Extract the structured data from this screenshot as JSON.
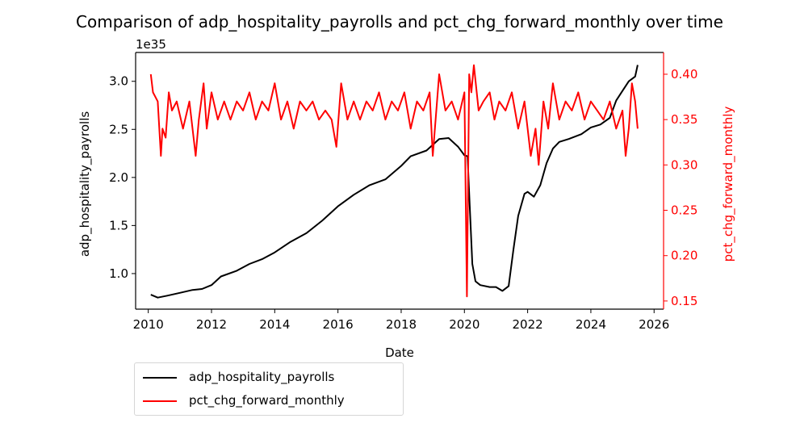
{
  "chart_data": {
    "type": "line",
    "title": "Comparison of adp_hospitality_payrolls and pct_chg_forward_monthly over time",
    "xlabel": "Date",
    "xlim": [
      2009.6,
      2026.3
    ],
    "xticks": [
      "2010",
      "2012",
      "2014",
      "2016",
      "2018",
      "2020",
      "2022",
      "2024",
      "2026"
    ],
    "xtick_values": [
      2010,
      2012,
      2014,
      2016,
      2018,
      2020,
      2022,
      2024,
      2026
    ],
    "left_axis": {
      "label": "adp_hospitality_payrolls",
      "offset_text": "1e35",
      "ylim": [
        0.63,
        3.3
      ],
      "ticks": [
        "1.0",
        "1.5",
        "2.0",
        "2.5",
        "3.0"
      ],
      "tick_values": [
        1.0,
        1.5,
        2.0,
        2.5,
        3.0
      ],
      "color": "#000000"
    },
    "right_axis": {
      "label": "pct_chg_forward_monthly",
      "ylim": [
        0.141,
        0.424
      ],
      "ticks": [
        "0.15",
        "0.20",
        "0.25",
        "0.30",
        "0.35",
        "0.40"
      ],
      "tick_values": [
        0.15,
        0.2,
        0.25,
        0.3,
        0.35,
        0.4
      ],
      "color": "#ff0000"
    },
    "legend_placement": "below-left",
    "series": [
      {
        "name": "adp_hospitality_payrolls",
        "axis": "left",
        "color": "#000000",
        "x": [
          2010.08,
          2010.3,
          2010.6,
          2011.0,
          2011.4,
          2011.7,
          2012.0,
          2012.3,
          2012.8,
          2013.2,
          2013.6,
          2014.0,
          2014.5,
          2015.0,
          2015.5,
          2016.0,
          2016.5,
          2017.0,
          2017.5,
          2018.0,
          2018.3,
          2018.8,
          2019.2,
          2019.5,
          2019.8,
          2020.0,
          2020.1,
          2020.17,
          2020.25,
          2020.35,
          2020.5,
          2020.8,
          2021.0,
          2021.2,
          2021.4,
          2021.55,
          2021.7,
          2021.9,
          2022.0,
          2022.2,
          2022.4,
          2022.6,
          2022.8,
          2023.0,
          2023.3,
          2023.7,
          2024.0,
          2024.3,
          2024.6,
          2024.8,
          2025.0,
          2025.2,
          2025.4,
          2025.48
        ],
        "y": [
          0.78,
          0.75,
          0.77,
          0.8,
          0.83,
          0.84,
          0.88,
          0.97,
          1.03,
          1.1,
          1.15,
          1.22,
          1.33,
          1.42,
          1.55,
          1.7,
          1.82,
          1.92,
          1.98,
          2.12,
          2.22,
          2.28,
          2.4,
          2.41,
          2.32,
          2.23,
          2.22,
          1.7,
          1.1,
          0.92,
          0.88,
          0.86,
          0.86,
          0.82,
          0.87,
          1.25,
          1.6,
          1.83,
          1.85,
          1.8,
          1.92,
          2.15,
          2.3,
          2.37,
          2.4,
          2.45,
          2.52,
          2.55,
          2.62,
          2.8,
          2.9,
          3.0,
          3.05,
          3.17
        ]
      },
      {
        "name": "pct_chg_forward_monthly",
        "axis": "right",
        "color": "#ff0000",
        "x": [
          2010.08,
          2010.15,
          2010.3,
          2010.4,
          2010.45,
          2010.55,
          2010.65,
          2010.75,
          2010.9,
          2011.1,
          2011.3,
          2011.5,
          2011.6,
          2011.75,
          2011.85,
          2012.0,
          2012.2,
          2012.4,
          2012.6,
          2012.8,
          2013.0,
          2013.2,
          2013.4,
          2013.6,
          2013.8,
          2014.0,
          2014.2,
          2014.4,
          2014.6,
          2014.8,
          2015.0,
          2015.2,
          2015.4,
          2015.6,
          2015.8,
          2015.95,
          2016.1,
          2016.3,
          2016.5,
          2016.7,
          2016.9,
          2017.1,
          2017.3,
          2017.5,
          2017.7,
          2017.9,
          2018.1,
          2018.3,
          2018.5,
          2018.7,
          2018.9,
          2019.0,
          2019.2,
          2019.4,
          2019.6,
          2019.8,
          2020.0,
          2020.08,
          2020.15,
          2020.22,
          2020.3,
          2020.45,
          2020.6,
          2020.8,
          2020.95,
          2021.1,
          2021.3,
          2021.5,
          2021.7,
          2021.9,
          2022.1,
          2022.25,
          2022.35,
          2022.5,
          2022.65,
          2022.8,
          2023.0,
          2023.2,
          2023.4,
          2023.6,
          2023.8,
          2024.0,
          2024.2,
          2024.4,
          2024.6,
          2024.8,
          2025.0,
          2025.1,
          2025.2,
          2025.3,
          2025.4,
          2025.48
        ],
        "y": [
          0.4,
          0.38,
          0.37,
          0.31,
          0.34,
          0.33,
          0.38,
          0.36,
          0.37,
          0.34,
          0.37,
          0.31,
          0.35,
          0.39,
          0.34,
          0.38,
          0.35,
          0.37,
          0.35,
          0.37,
          0.36,
          0.38,
          0.35,
          0.37,
          0.36,
          0.39,
          0.35,
          0.37,
          0.34,
          0.37,
          0.36,
          0.37,
          0.35,
          0.36,
          0.35,
          0.32,
          0.39,
          0.35,
          0.37,
          0.35,
          0.37,
          0.36,
          0.38,
          0.35,
          0.37,
          0.36,
          0.38,
          0.34,
          0.37,
          0.36,
          0.38,
          0.31,
          0.4,
          0.36,
          0.37,
          0.35,
          0.38,
          0.155,
          0.4,
          0.38,
          0.41,
          0.36,
          0.37,
          0.38,
          0.35,
          0.37,
          0.36,
          0.38,
          0.34,
          0.37,
          0.31,
          0.34,
          0.3,
          0.37,
          0.34,
          0.39,
          0.35,
          0.37,
          0.36,
          0.38,
          0.35,
          0.37,
          0.36,
          0.35,
          0.37,
          0.34,
          0.36,
          0.31,
          0.34,
          0.39,
          0.37,
          0.34
        ]
      }
    ]
  }
}
